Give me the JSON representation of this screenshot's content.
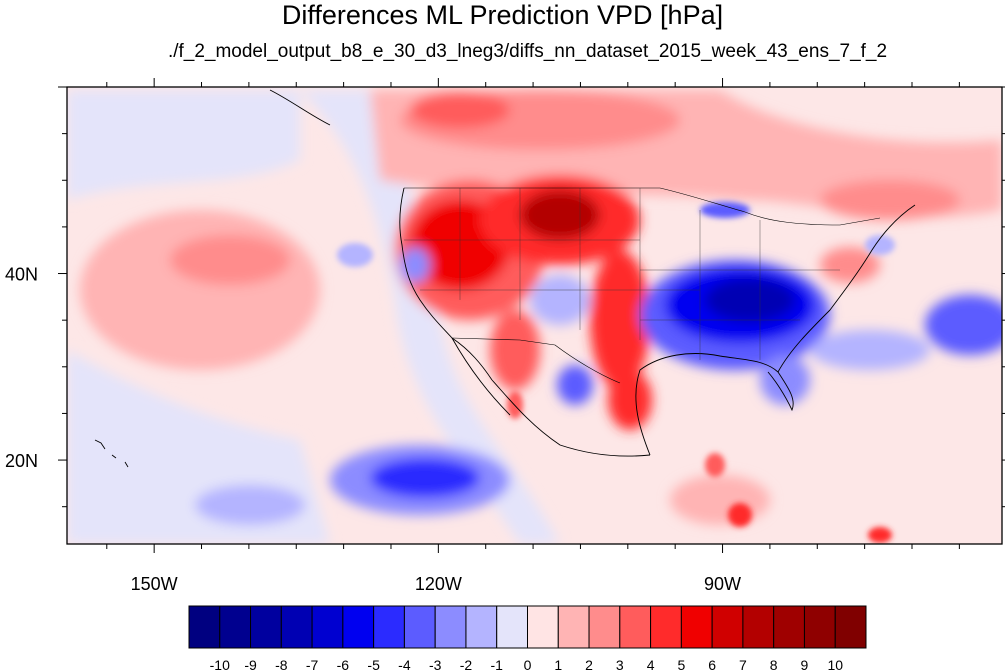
{
  "title": "Differences ML Prediction VPD [hPa]",
  "subtitle": "./f_2_model_output_b8_e_30_d3_lneg3/diffs_nn_dataset_2015_week_43_ens_7_f_2",
  "map": {
    "projection": "cylindrical equidistant",
    "lon_range": [
      -159.2,
      -60.5
    ],
    "lat_range": [
      11,
      60
    ],
    "xticks": [
      {
        "lon": -150,
        "label": "150W"
      },
      {
        "lon": -120,
        "label": "120W"
      },
      {
        "lon": -90,
        "label": "90W"
      }
    ],
    "yticks": [
      {
        "lat": 40,
        "label": "40N"
      },
      {
        "lat": 20,
        "label": "20N"
      }
    ],
    "field_description": "filled contours of VPD difference (hPa); positive (red) over western/central US and North Pacific north of 45N, strong negative (blue) over southeastern US, patches of negative near Baja California and tropical Pacific",
    "colors": {
      "positive_max": "#800000",
      "negative_max": "#000080",
      "zero": "#ffffff"
    }
  },
  "colorbar": {
    "labels": [
      "-10",
      "-9",
      "-8",
      "-7",
      "-6",
      "-5",
      "-4",
      "-3",
      "-2",
      "-1",
      "0",
      "1",
      "2",
      "3",
      "4",
      "5",
      "6",
      "7",
      "8",
      "9",
      "10"
    ],
    "colors": [
      "#000080",
      "#00008f",
      "#00009f",
      "#0000b3",
      "#0000d0",
      "#0000f0",
      "#2b2bff",
      "#5c5cff",
      "#8c8cff",
      "#b4b4ff",
      "#e4e4fa",
      "#ffe4e4",
      "#ffb4b4",
      "#ff8c8c",
      "#ff5c5c",
      "#ff2b2b",
      "#f00000",
      "#d00000",
      "#b30000",
      "#9f0000",
      "#8f0000",
      "#800000"
    ]
  }
}
